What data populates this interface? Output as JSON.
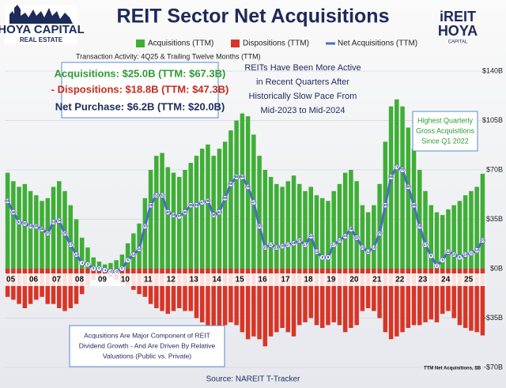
{
  "chart_data": {
    "type": "bar_line",
    "title": "REIT Sector Net Acquisitions",
    "logo_left": [
      "HOYA CAPITAL",
      "REAL ESTATE"
    ],
    "logo_right": [
      "iREIT",
      "HOYA",
      "CAPITAL"
    ],
    "subtitle": "Transaction Activity: 4Q25 & Trailing Twelve Months (TTM)",
    "summary": [
      "Acquisitions: $25.0B (TTM: $67.3B)",
      "- Dispositions: $18.8B (TTM: $47.3B)",
      "Net Purchase: $6.2B (TTM: $20.0B)"
    ],
    "note_top": [
      "REITs Have Been More Active",
      "in Recent Quarters After",
      "Historically Slow Pace From",
      "Mid-2023 to Mid-2024"
    ],
    "note_right": [
      "Highest Quarterly",
      "Gross Acquisitions",
      "Since Q1 2022"
    ],
    "note_bottom": [
      "Acqusitions Are Major Component of REIT",
      "Dividend Growth - And Are Driven By Relative",
      "Valuations (Public vs. Private)"
    ],
    "source": "Source:  NAREIT T-Tracker",
    "axis_note": "TTM Net Acquisitions, $B",
    "categories": [
      "05",
      null,
      null,
      null,
      "06",
      null,
      null,
      null,
      "07",
      null,
      null,
      null,
      "08",
      null,
      null,
      null,
      "09",
      null,
      null,
      null,
      "10",
      null,
      null,
      null,
      "11",
      null,
      null,
      null,
      "12",
      null,
      null,
      null,
      "13",
      null,
      null,
      null,
      "14",
      null,
      null,
      null,
      "15",
      null,
      null,
      null,
      "16",
      null,
      null,
      null,
      "17",
      null,
      null,
      null,
      "18",
      null,
      null,
      null,
      "19",
      null,
      null,
      null,
      "20",
      null,
      null,
      null,
      "21",
      null,
      null,
      null,
      "22",
      null,
      null,
      null,
      "23",
      null,
      null,
      null,
      "24",
      null,
      null,
      null,
      "25",
      null,
      null,
      null
    ],
    "series": [
      {
        "name": "Acquisitions (TTM)",
        "color": "#3fae36",
        "kind": "bar",
        "values": [
          68,
          62,
          58,
          60,
          55,
          52,
          48,
          50,
          58,
          62,
          55,
          45,
          35,
          22,
          15,
          8,
          5,
          3,
          4,
          6,
          10,
          18,
          25,
          32,
          50,
          70,
          80,
          82,
          72,
          68,
          65,
          70,
          75,
          80,
          85,
          88,
          80,
          85,
          90,
          98,
          105,
          110,
          108,
          95,
          80,
          70,
          65,
          60,
          58,
          62,
          66,
          60,
          55,
          58,
          52,
          50,
          48,
          55,
          60,
          68,
          70,
          62,
          45,
          40,
          45,
          60,
          90,
          115,
          120,
          115,
          100,
          85,
          70,
          55,
          45,
          40,
          38,
          42,
          45,
          48,
          52,
          55,
          58,
          67.3
        ]
      },
      {
        "name": "Dispositions (TTM)",
        "color": "#d83526",
        "kind": "bar",
        "values": [
          -20,
          -22,
          -25,
          -28,
          -25,
          -22,
          -20,
          -25,
          -25,
          -28,
          -30,
          -28,
          -25,
          -18,
          -12,
          -8,
          -5,
          -4,
          -6,
          -8,
          -10,
          -12,
          -15,
          -18,
          -20,
          -25,
          -28,
          -30,
          -32,
          -30,
          -28,
          -30,
          -30,
          -35,
          -38,
          -40,
          -42,
          -45,
          -40,
          -38,
          -40,
          -45,
          -50,
          -48,
          -50,
          -55,
          -48,
          -45,
          -42,
          -45,
          -48,
          -40,
          -38,
          -35,
          -40,
          -42,
          -40,
          -38,
          -40,
          -45,
          -42,
          -40,
          -30,
          -28,
          -30,
          -35,
          -45,
          -50,
          -48,
          -45,
          -42,
          -40,
          -40,
          -38,
          -36,
          -38,
          -32,
          -30,
          -35,
          -40,
          -42,
          -44,
          -45,
          -47.3
        ]
      },
      {
        "name": "Net Acquisitions (TTM)",
        "color": "#4a6bc6",
        "kind": "line",
        "values": [
          48,
          40,
          33,
          32,
          30,
          30,
          28,
          25,
          33,
          34,
          25,
          17,
          10,
          4,
          3,
          0,
          0,
          -1,
          -2,
          -2,
          0,
          6,
          10,
          14,
          30,
          45,
          52,
          52,
          40,
          38,
          37,
          40,
          45,
          45,
          47,
          48,
          38,
          40,
          50,
          60,
          65,
          65,
          58,
          47,
          30,
          15,
          17,
          15,
          16,
          17,
          18,
          20,
          17,
          23,
          12,
          8,
          8,
          17,
          20,
          23,
          28,
          22,
          15,
          12,
          15,
          25,
          45,
          65,
          72,
          70,
          58,
          45,
          30,
          17,
          9,
          2,
          6,
          12,
          10,
          8,
          10,
          11,
          13,
          20
        ]
      }
    ],
    "ylim": [
      -70,
      140
    ],
    "yticks": [
      {
        "value": -70,
        "label": "-$70B"
      },
      {
        "value": -35,
        "label": "-$35B"
      },
      {
        "value": 0,
        "label": "$0B"
      },
      {
        "value": 35,
        "label": "$35B"
      },
      {
        "value": 70,
        "label": "$70B"
      },
      {
        "value": 105,
        "label": "$105B"
      },
      {
        "value": 140,
        "label": "$140B"
      }
    ],
    "grid": true
  }
}
